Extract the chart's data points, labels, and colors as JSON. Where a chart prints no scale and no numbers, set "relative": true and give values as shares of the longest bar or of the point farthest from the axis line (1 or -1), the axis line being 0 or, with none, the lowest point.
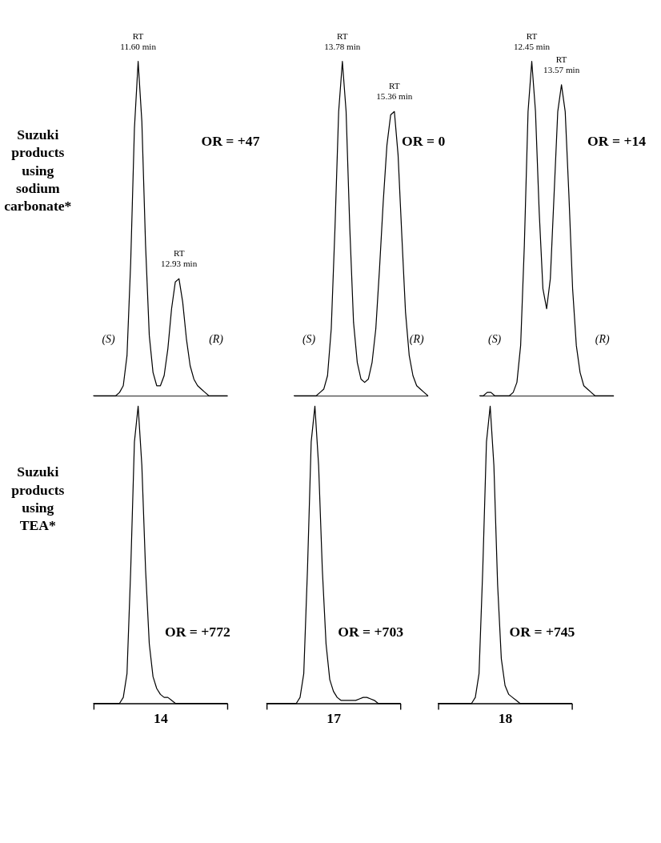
{
  "chart_data": [
    {
      "type": "line",
      "relative": true,
      "tick_labels": false,
      "ylabel": "Suzuki products using sodium carbonate*",
      "categories": [
        null,
        null,
        null,
        null,
        null,
        null,
        null,
        null,
        null,
        null,
        null,
        null,
        null,
        null,
        null,
        null,
        null,
        null,
        null,
        null,
        null,
        null,
        null,
        null,
        null,
        null,
        null,
        null,
        null,
        null,
        null,
        null,
        null,
        null,
        null,
        null,
        null
      ],
      "series": [
        {
          "color": "#000000",
          "values": [
            0,
            0,
            0,
            0,
            0,
            0,
            0,
            0.01,
            0.03,
            0.12,
            0.4,
            0.8,
            1.0,
            0.82,
            0.45,
            0.18,
            0.07,
            0.03,
            0.03,
            0.06,
            0.14,
            0.26,
            0.34,
            0.35,
            0.28,
            0.17,
            0.09,
            0.05,
            0.03,
            0.02,
            0.01,
            0,
            0,
            0,
            0,
            0,
            0
          ]
        }
      ],
      "annotations": [
        "RT\n11.60 min",
        "RT\n12.93 min",
        "(S)",
        "(R)",
        "OR = +47"
      ]
    },
    {
      "type": "line",
      "relative": true,
      "tick_labels": false,
      "categories": [
        null,
        null,
        null,
        null,
        null,
        null,
        null,
        null,
        null,
        null,
        null,
        null,
        null,
        null,
        null,
        null,
        null,
        null,
        null,
        null,
        null,
        null,
        null,
        null,
        null,
        null,
        null,
        null,
        null,
        null,
        null,
        null,
        null,
        null,
        null,
        null,
        null
      ],
      "series": [
        {
          "color": "#000000",
          "values": [
            0,
            0,
            0,
            0,
            0,
            0,
            0,
            0.01,
            0.02,
            0.06,
            0.2,
            0.5,
            0.85,
            1.0,
            0.85,
            0.5,
            0.22,
            0.1,
            0.05,
            0.04,
            0.05,
            0.1,
            0.2,
            0.38,
            0.58,
            0.75,
            0.84,
            0.85,
            0.72,
            0.48,
            0.25,
            0.12,
            0.06,
            0.03,
            0.02,
            0.01,
            0
          ]
        }
      ],
      "annotations": [
        "RT\n13.78 min",
        "RT\n15.36 min",
        "(S)",
        "(R)",
        "OR = 0"
      ]
    },
    {
      "type": "line",
      "relative": true,
      "tick_labels": false,
      "categories": [
        null,
        null,
        null,
        null,
        null,
        null,
        null,
        null,
        null,
        null,
        null,
        null,
        null,
        null,
        null,
        null,
        null,
        null,
        null,
        null,
        null,
        null,
        null,
        null,
        null,
        null,
        null,
        null,
        null,
        null,
        null,
        null,
        null,
        null,
        null,
        null,
        null
      ],
      "series": [
        {
          "color": "#000000",
          "values": [
            0,
            0,
            0.01,
            0.01,
            0,
            0,
            0,
            0,
            0,
            0.01,
            0.04,
            0.15,
            0.45,
            0.85,
            1.0,
            0.85,
            0.55,
            0.32,
            0.26,
            0.35,
            0.6,
            0.85,
            0.93,
            0.85,
            0.6,
            0.32,
            0.15,
            0.07,
            0.03,
            0.02,
            0.01,
            0,
            0,
            0,
            0,
            0,
            0
          ]
        }
      ],
      "annotations": [
        "RT\n12.45 min",
        "RT\n13.57 min",
        "(S)",
        "(R)",
        "OR = +14"
      ]
    },
    {
      "type": "line",
      "relative": true,
      "tick_labels": false,
      "xlabel": "14",
      "ylabel": "Suzuki products using TEA*",
      "categories": [
        null,
        null,
        null,
        null,
        null,
        null,
        null,
        null,
        null,
        null,
        null,
        null,
        null,
        null,
        null,
        null,
        null,
        null,
        null,
        null,
        null,
        null,
        null,
        null,
        null,
        null,
        null,
        null,
        null,
        null,
        null,
        null,
        null,
        null,
        null,
        null,
        null
      ],
      "series": [
        {
          "color": "#000000",
          "values": [
            0,
            0,
            0,
            0,
            0,
            0,
            0,
            0,
            0.02,
            0.1,
            0.45,
            0.88,
            1.0,
            0.8,
            0.45,
            0.2,
            0.09,
            0.05,
            0.03,
            0.02,
            0.02,
            0.01,
            0,
            0,
            0,
            0,
            0,
            0,
            0,
            0,
            0,
            0,
            0,
            0,
            0,
            0,
            0
          ]
        }
      ],
      "annotations": [
        "OR =  +772"
      ]
    },
    {
      "type": "line",
      "relative": true,
      "tick_labels": false,
      "xlabel": "17",
      "categories": [
        null,
        null,
        null,
        null,
        null,
        null,
        null,
        null,
        null,
        null,
        null,
        null,
        null,
        null,
        null,
        null,
        null,
        null,
        null,
        null,
        null,
        null,
        null,
        null,
        null,
        null,
        null,
        null,
        null,
        null,
        null,
        null,
        null,
        null,
        null,
        null,
        null
      ],
      "series": [
        {
          "color": "#000000",
          "values": [
            0,
            0,
            0,
            0,
            0,
            0,
            0,
            0,
            0,
            0.02,
            0.1,
            0.45,
            0.88,
            1.0,
            0.8,
            0.45,
            0.2,
            0.08,
            0.04,
            0.02,
            0.01,
            0.01,
            0.01,
            0.01,
            0.01,
            0.015,
            0.02,
            0.02,
            0.015,
            0.01,
            0,
            0,
            0,
            0,
            0,
            0,
            0
          ]
        }
      ],
      "annotations": [
        "OR = +703"
      ]
    },
    {
      "type": "line",
      "relative": true,
      "tick_labels": false,
      "xlabel": "18",
      "categories": [
        null,
        null,
        null,
        null,
        null,
        null,
        null,
        null,
        null,
        null,
        null,
        null,
        null,
        null,
        null,
        null,
        null,
        null,
        null,
        null,
        null,
        null,
        null,
        null,
        null,
        null,
        null,
        null,
        null,
        null,
        null,
        null,
        null,
        null,
        null,
        null,
        null
      ],
      "series": [
        {
          "color": "#000000",
          "values": [
            0,
            0,
            0,
            0,
            0,
            0,
            0,
            0,
            0,
            0,
            0.02,
            0.1,
            0.45,
            0.88,
            1.0,
            0.8,
            0.4,
            0.15,
            0.06,
            0.03,
            0.02,
            0.01,
            0,
            0,
            0,
            0,
            0,
            0,
            0,
            0,
            0,
            0,
            0,
            0,
            0,
            0,
            0
          ]
        }
      ],
      "annotations": [
        "OR = +745"
      ]
    }
  ]
}
